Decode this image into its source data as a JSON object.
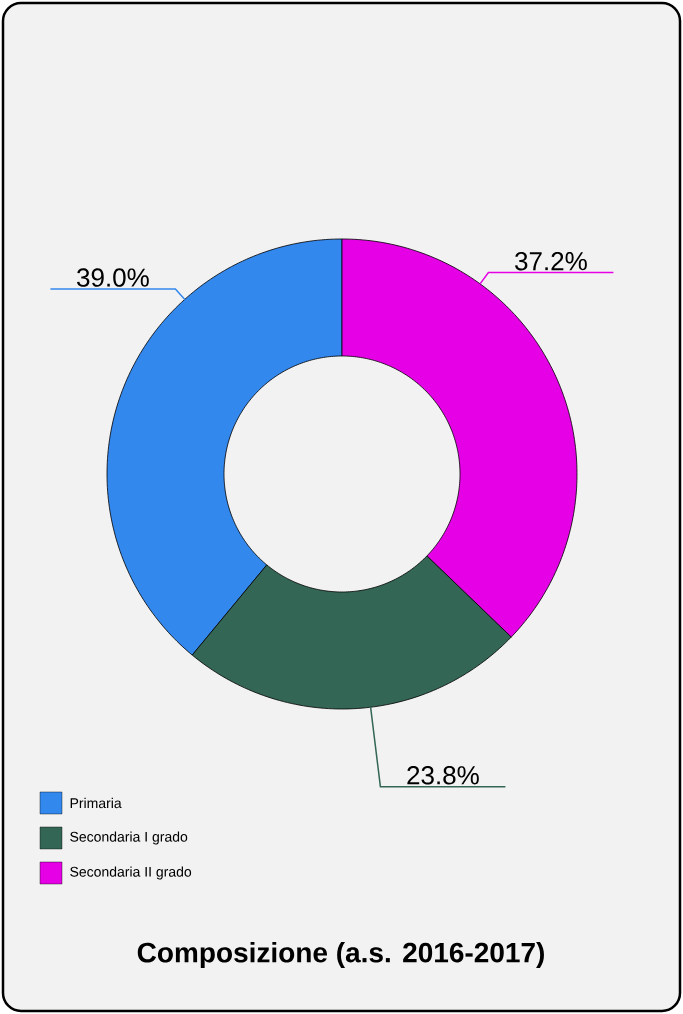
{
  "chart_data": {
    "type": "donut",
    "title": "Composizione (a.s. 2016-2017)",
    "categories": [
      "Primaria",
      "Secondaria I grado",
      "Secondaria II grado"
    ],
    "values": [
      39.0,
      23.8,
      37.2
    ],
    "value_labels": [
      "39.0%",
      "23.8%",
      "37.2%"
    ],
    "colors": [
      "#3388ee",
      "#336655",
      "#e600e6"
    ],
    "legend": "bottom left"
  }
}
